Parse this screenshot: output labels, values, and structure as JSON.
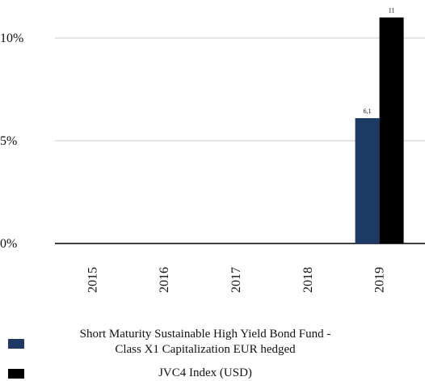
{
  "chart_data": {
    "type": "bar",
    "categories": [
      "2015",
      "2016",
      "2017",
      "2018",
      "2019"
    ],
    "series": [
      {
        "name": "Short Maturity Sustainable High Yield Bond Fund - Class X1 Capitalization EUR hedged",
        "color": "#1c3a63",
        "values": [
          null,
          null,
          null,
          null,
          6.1
        ],
        "data_labels": [
          "",
          "",
          "",
          "",
          "6,1"
        ]
      },
      {
        "name": "JVC4 Index (USD)",
        "color": "#000000",
        "values": [
          null,
          null,
          null,
          null,
          11
        ],
        "data_labels": [
          "",
          "",
          "",
          "",
          "11"
        ]
      }
    ],
    "y_ticks": [
      {
        "value": 0,
        "label": "0%"
      },
      {
        "value": 5,
        "label": "5%"
      },
      {
        "value": 10,
        "label": "10%"
      }
    ],
    "ylim": [
      0,
      12
    ],
    "grid": true,
    "legend_position": "bottom",
    "title": "",
    "xlabel": "",
    "ylabel": ""
  },
  "legend": {
    "items": [
      {
        "line1": "Short Maturity Sustainable High Yield Bond Fund -",
        "line2": "Class X1 Capitalization EUR hedged",
        "color": "#1c3a63"
      },
      {
        "line1": "JVC4 Index (USD)",
        "line2": "",
        "color": "#000000"
      }
    ]
  }
}
